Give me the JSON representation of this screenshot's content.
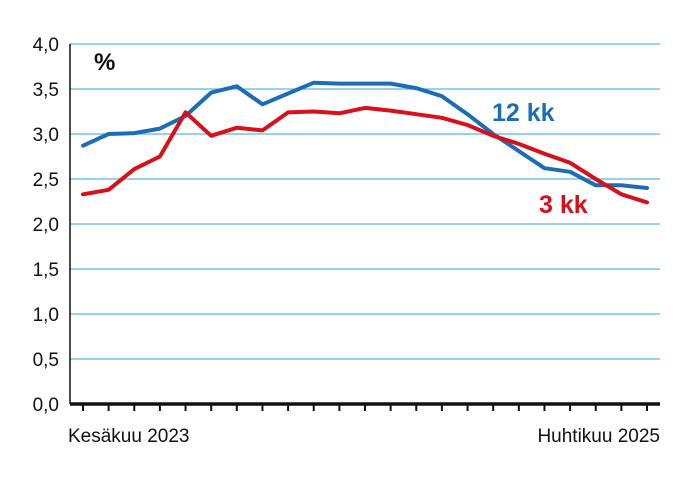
{
  "chart_data": {
    "type": "line",
    "unit_label": "%",
    "x_start_label": "Kesäkuu 2023",
    "x_end_label": "Huhtikuu 2025",
    "ylim": [
      0,
      4
    ],
    "y_ticks": [
      "0,0",
      "0,5",
      "1,0",
      "1,5",
      "2,0",
      "2,5",
      "3,0",
      "3,5",
      "4,0"
    ],
    "grid": true,
    "x_count": 23,
    "series": [
      {
        "name": "12 kk",
        "color": "#1d6db5",
        "values": [
          2.87,
          3.0,
          3.01,
          3.06,
          3.2,
          3.46,
          3.53,
          3.33,
          3.45,
          3.57,
          3.56,
          3.56,
          3.56,
          3.51,
          3.42,
          3.22,
          3.0,
          2.81,
          2.62,
          2.58,
          2.43,
          2.43,
          2.4
        ]
      },
      {
        "name": "3 kk",
        "color": "#d8101a",
        "values": [
          2.33,
          2.38,
          2.61,
          2.75,
          3.24,
          2.98,
          3.07,
          3.04,
          3.24,
          3.25,
          3.23,
          3.29,
          3.26,
          3.22,
          3.18,
          3.1,
          2.98,
          2.89,
          2.78,
          2.68,
          2.5,
          2.33,
          2.24
        ]
      }
    ]
  }
}
